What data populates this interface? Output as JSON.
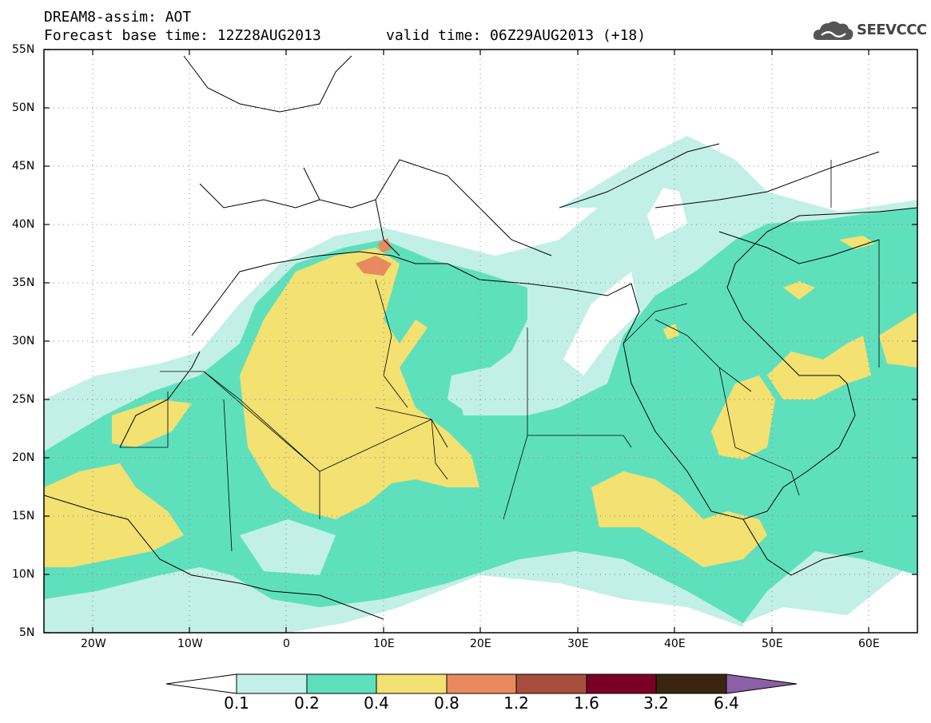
{
  "header": {
    "model_title": "DREAM8-assim: AOT",
    "base_time": "Forecast base time: 12Z28AUG2013",
    "valid_time": "valid time: 06Z29AUG2013 (+18)"
  },
  "logo": {
    "text": "SEEVCCC",
    "icon": "cloud-icon"
  },
  "map": {
    "lat_labels": [
      "55N",
      "50N",
      "45N",
      "40N",
      "35N",
      "30N",
      "25N",
      "20N",
      "15N",
      "10N",
      "5N"
    ],
    "lon_labels": [
      "20W",
      "10W",
      "0",
      "10E",
      "20E",
      "30E",
      "40E",
      "50E",
      "60E"
    ],
    "lat_range": [
      5,
      55
    ],
    "lon_range": [
      -25,
      65
    ],
    "grid": "dotted"
  },
  "legend": {
    "levels": [
      "0.1",
      "0.2",
      "0.4",
      "0.8",
      "1.2",
      "1.6",
      "3.2",
      "6.4"
    ],
    "colors": [
      "#ffffff",
      "#c2f0e6",
      "#5fe0bd",
      "#f3e172",
      "#e88a5e",
      "#a84e3c",
      "#7a0026",
      "#3a2510",
      "#8c5fa6"
    ]
  }
}
